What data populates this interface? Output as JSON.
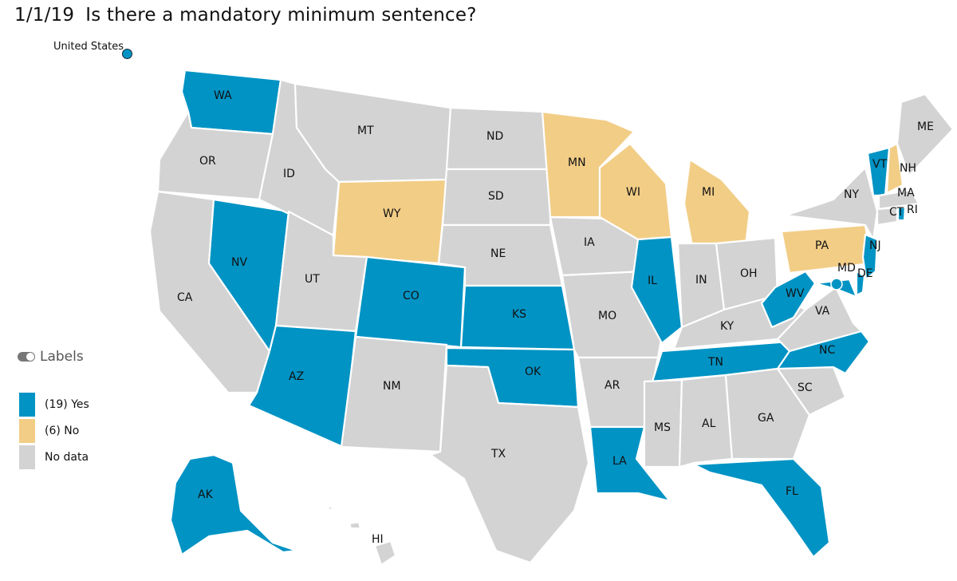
{
  "header": {
    "date": "1/1/19",
    "question": "Is there a mandatory minimum sentence?"
  },
  "overlay": {
    "us_label": "United States"
  },
  "toggle": {
    "label": "Labels"
  },
  "legend": [
    {
      "key": "yes",
      "text": "(19)  Yes",
      "color": "#0093c4"
    },
    {
      "key": "no",
      "text": "(6)  No",
      "color": "#f2cd86"
    },
    {
      "key": "nodata",
      "text": "No data",
      "color": "#d3d3d3"
    }
  ],
  "colors": {
    "yes": "#0093c4",
    "no": "#f2cd86",
    "nodata": "#d3d3d3"
  },
  "map_data": {
    "states": [
      {
        "abbr": "WA",
        "status": "yes"
      },
      {
        "abbr": "OR",
        "status": "nodata"
      },
      {
        "abbr": "CA",
        "status": "nodata"
      },
      {
        "abbr": "NV",
        "status": "yes"
      },
      {
        "abbr": "ID",
        "status": "nodata"
      },
      {
        "abbr": "MT",
        "status": "nodata"
      },
      {
        "abbr": "WY",
        "status": "no"
      },
      {
        "abbr": "UT",
        "status": "nodata"
      },
      {
        "abbr": "AZ",
        "status": "yes"
      },
      {
        "abbr": "CO",
        "status": "yes"
      },
      {
        "abbr": "NM",
        "status": "nodata"
      },
      {
        "abbr": "ND",
        "status": "nodata"
      },
      {
        "abbr": "SD",
        "status": "nodata"
      },
      {
        "abbr": "NE",
        "status": "nodata"
      },
      {
        "abbr": "KS",
        "status": "yes"
      },
      {
        "abbr": "OK",
        "status": "yes"
      },
      {
        "abbr": "TX",
        "status": "nodata"
      },
      {
        "abbr": "MN",
        "status": "no"
      },
      {
        "abbr": "IA",
        "status": "nodata"
      },
      {
        "abbr": "MO",
        "status": "nodata"
      },
      {
        "abbr": "AR",
        "status": "nodata"
      },
      {
        "abbr": "LA",
        "status": "yes"
      },
      {
        "abbr": "WI",
        "status": "no"
      },
      {
        "abbr": "IL",
        "status": "yes"
      },
      {
        "abbr": "MI",
        "status": "no"
      },
      {
        "abbr": "IN",
        "status": "nodata"
      },
      {
        "abbr": "OH",
        "status": "nodata"
      },
      {
        "abbr": "KY",
        "status": "nodata"
      },
      {
        "abbr": "TN",
        "status": "yes"
      },
      {
        "abbr": "MS",
        "status": "nodata"
      },
      {
        "abbr": "AL",
        "status": "nodata"
      },
      {
        "abbr": "GA",
        "status": "nodata"
      },
      {
        "abbr": "FL",
        "status": "yes"
      },
      {
        "abbr": "SC",
        "status": "nodata"
      },
      {
        "abbr": "NC",
        "status": "yes"
      },
      {
        "abbr": "VA",
        "status": "nodata"
      },
      {
        "abbr": "WV",
        "status": "yes"
      },
      {
        "abbr": "PA",
        "status": "no"
      },
      {
        "abbr": "NY",
        "status": "nodata"
      },
      {
        "abbr": "VT",
        "status": "yes"
      },
      {
        "abbr": "NH",
        "status": "no"
      },
      {
        "abbr": "ME",
        "status": "nodata"
      },
      {
        "abbr": "MA",
        "status": "nodata"
      },
      {
        "abbr": "CT",
        "status": "nodata"
      },
      {
        "abbr": "RI",
        "status": "yes"
      },
      {
        "abbr": "NJ",
        "status": "yes"
      },
      {
        "abbr": "DE",
        "status": "yes"
      },
      {
        "abbr": "MD",
        "status": "yes"
      },
      {
        "abbr": "DC",
        "status": "yes"
      },
      {
        "abbr": "AK",
        "status": "yes"
      },
      {
        "abbr": "HI",
        "status": "nodata"
      }
    ]
  }
}
